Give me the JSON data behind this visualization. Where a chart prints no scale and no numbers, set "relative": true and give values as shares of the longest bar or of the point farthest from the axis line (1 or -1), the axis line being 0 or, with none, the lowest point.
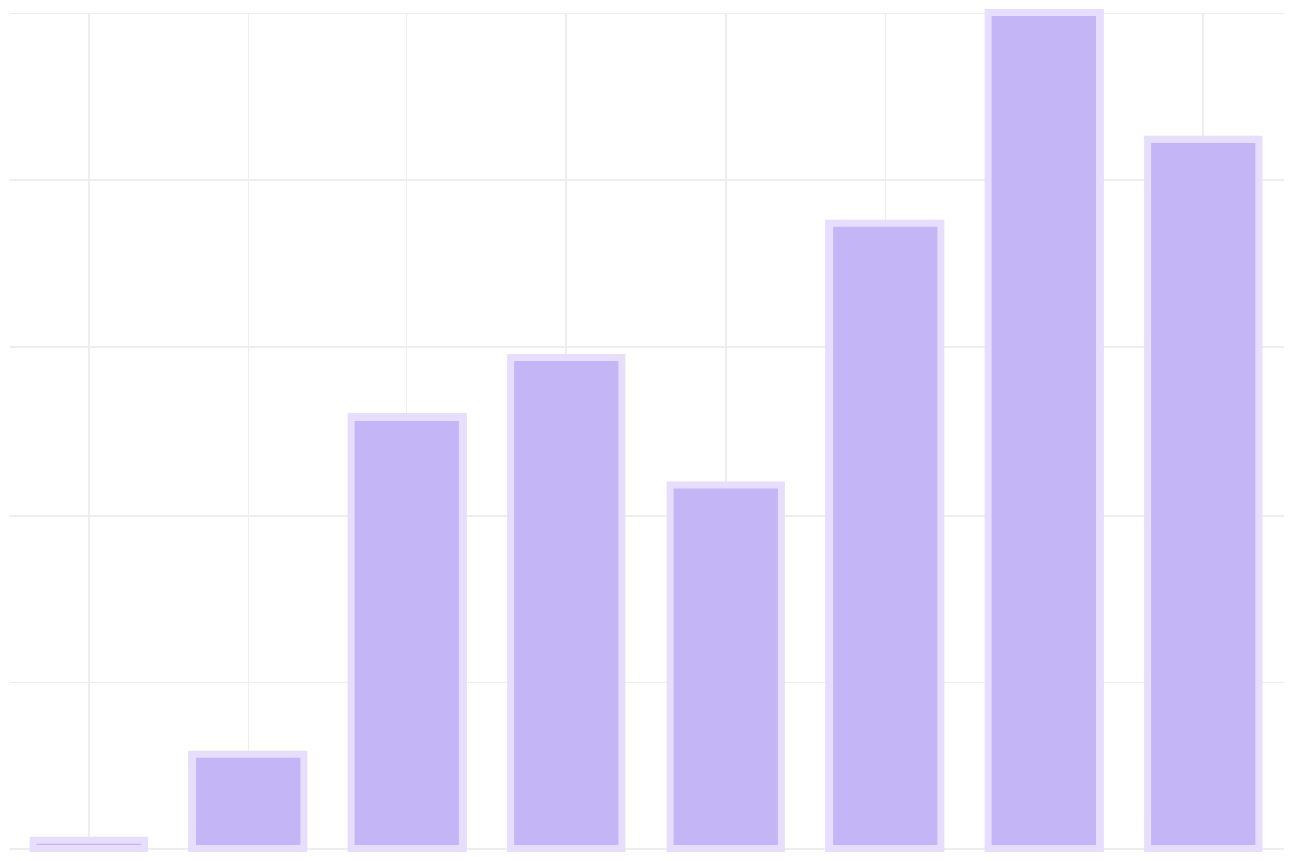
{
  "chart_data": {
    "type": "bar",
    "relative": true,
    "categories": [
      null,
      null,
      null,
      null,
      null,
      null,
      null,
      null
    ],
    "values": [
      0.01,
      0.113,
      0.516,
      0.587,
      0.435,
      0.748,
      1,
      0.848
    ],
    "color": "#c4b5f7",
    "grid": true
  }
}
